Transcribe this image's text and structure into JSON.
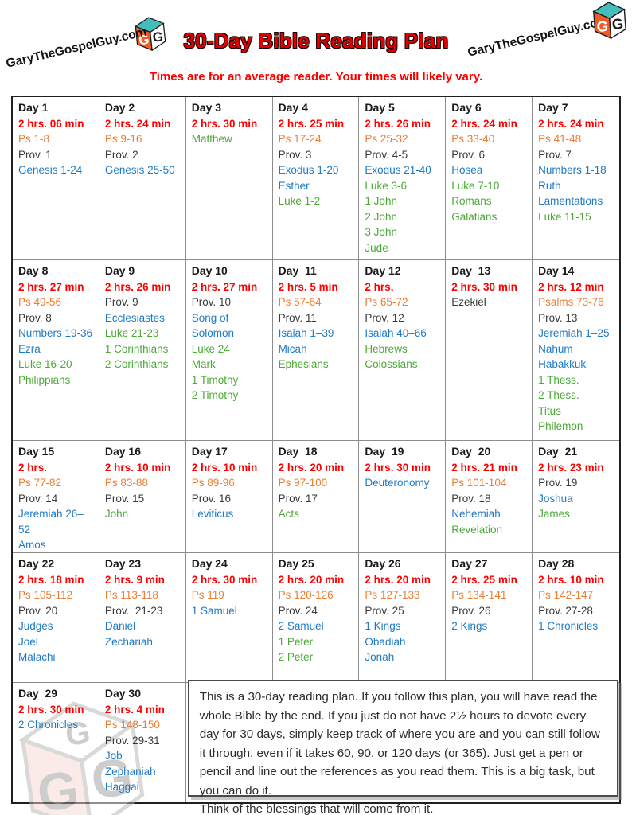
{
  "header": {
    "site_left": "GaryTheGospelGuy.com",
    "site_right": "GaryTheGospelGuy.com",
    "title": "30-Day Bible Reading Plan",
    "subtitle": "Times are for an average reader. Your times will likely vary."
  },
  "colors": {
    "title": "#E00000",
    "title_outline": "#1A0000",
    "time": "#FF0000",
    "psalms": "#ED7D31",
    "plain": "#3A3A3A",
    "day": "#1A1A1A",
    "ot": "#1E7AC6",
    "nt": "#4CA937",
    "grid": "#8C8C8C",
    "outer": "#1F1F1F"
  },
  "icons": {
    "logo": "gospel-guy-cube-logo",
    "cube_orange": "#F05A28",
    "cube_teal": "#45BDBD"
  },
  "days": [
    {
      "label": "Day 1",
      "time": "2 hrs. 06 min",
      "readings": [
        {
          "text": "Ps 1-8",
          "cat": "ps"
        },
        {
          "text": "Prov. 1",
          "cat": "prov"
        },
        {
          "text": "Genesis 1-24",
          "cat": "ot"
        }
      ]
    },
    {
      "label": "Day 2",
      "time": "2 hrs. 24 min",
      "readings": [
        {
          "text": "Ps 9-16",
          "cat": "ps"
        },
        {
          "text": "Prov. 2",
          "cat": "prov"
        },
        {
          "text": "Genesis 25-50",
          "cat": "ot"
        }
      ]
    },
    {
      "label": "Day 3",
      "time": "2 hrs. 30 min",
      "readings": [
        {
          "text": "Matthew",
          "cat": "nt"
        }
      ]
    },
    {
      "label": "Day 4",
      "time": "2 hrs. 25 min",
      "readings": [
        {
          "text": "Ps 17-24",
          "cat": "ps"
        },
        {
          "text": "Prov. 3",
          "cat": "prov"
        },
        {
          "text": "Exodus 1-20",
          "cat": "ot"
        },
        {
          "text": "Esther",
          "cat": "ot"
        },
        {
          "text": "Luke 1-2",
          "cat": "nt"
        }
      ]
    },
    {
      "label": "Day 5",
      "time": "2 hrs. 26 min",
      "readings": [
        {
          "text": "Ps 25-32",
          "cat": "ps"
        },
        {
          "text": "Prov. 4-5",
          "cat": "prov"
        },
        {
          "text": "Exodus 21-40",
          "cat": "ot"
        },
        {
          "text": "Luke 3-6",
          "cat": "nt"
        },
        {
          "text": "1 John",
          "cat": "nt"
        },
        {
          "text": "2 John",
          "cat": "nt"
        },
        {
          "text": "3 John",
          "cat": "nt"
        },
        {
          "text": "Jude",
          "cat": "nt"
        }
      ]
    },
    {
      "label": "Day 6",
      "time": "2 hrs. 24 min",
      "readings": [
        {
          "text": "Ps 33-40",
          "cat": "ps"
        },
        {
          "text": "Prov. 6",
          "cat": "prov"
        },
        {
          "text": "Hosea",
          "cat": "ot"
        },
        {
          "text": "Luke 7-10",
          "cat": "nt"
        },
        {
          "text": "Romans",
          "cat": "nt"
        },
        {
          "text": "Galatians",
          "cat": "nt"
        }
      ]
    },
    {
      "label": "Day 7",
      "time": "2 hrs. 24 min",
      "readings": [
        {
          "text": "Ps 41-48",
          "cat": "ps"
        },
        {
          "text": "Prov. 7",
          "cat": "prov"
        },
        {
          "text": "Numbers 1-18",
          "cat": "ot"
        },
        {
          "text": "Ruth",
          "cat": "ot"
        },
        {
          "text": "Lamentations",
          "cat": "ot"
        },
        {
          "text": "Luke 11-15",
          "cat": "nt"
        }
      ]
    },
    {
      "label": "Day 8",
      "time": "2 hrs. 27 min",
      "readings": [
        {
          "text": "Ps 49-56",
          "cat": "ps"
        },
        {
          "text": "Prov. 8",
          "cat": "prov"
        },
        {
          "text": "Numbers 19-36",
          "cat": "ot"
        },
        {
          "text": "Ezra",
          "cat": "ot"
        },
        {
          "text": "Luke 16-20",
          "cat": "nt"
        },
        {
          "text": "Philippians",
          "cat": "nt"
        }
      ]
    },
    {
      "label": "Day 9",
      "time": "2 hrs. 26 min",
      "readings": [
        {
          "text": "Prov. 9",
          "cat": "prov"
        },
        {
          "text": "Ecclesiastes",
          "cat": "ot"
        },
        {
          "text": "Luke 21-23",
          "cat": "nt"
        },
        {
          "text": "1 Corinthians",
          "cat": "nt"
        },
        {
          "text": "2 Corinthians",
          "cat": "nt"
        }
      ]
    },
    {
      "label": "Day 10",
      "time": "2 hrs. 27 min",
      "readings": [
        {
          "text": "Prov. 10",
          "cat": "prov"
        },
        {
          "text": "Song of Solomon",
          "cat": "ot"
        },
        {
          "text": "Luke 24",
          "cat": "nt"
        },
        {
          "text": "Mark",
          "cat": "nt"
        },
        {
          "text": "1 Timothy",
          "cat": "nt"
        },
        {
          "text": "2 Timothy",
          "cat": "nt"
        }
      ]
    },
    {
      "label": "Day  11",
      "time": "2 hrs. 5 min",
      "readings": [
        {
          "text": "Ps 57-64",
          "cat": "ps"
        },
        {
          "text": "Prov. 11",
          "cat": "prov"
        },
        {
          "text": "Isaiah 1–39",
          "cat": "ot"
        },
        {
          "text": "Micah",
          "cat": "ot"
        },
        {
          "text": "Ephesians",
          "cat": "nt"
        }
      ]
    },
    {
      "label": "Day 12",
      "time": "2 hrs.",
      "readings": [
        {
          "text": "Ps 65-72",
          "cat": "ps"
        },
        {
          "text": "Prov. 12",
          "cat": "prov"
        },
        {
          "text": "Isaiah 40–66",
          "cat": "ot"
        },
        {
          "text": "Hebrews",
          "cat": "nt"
        },
        {
          "text": "Colossians",
          "cat": "nt"
        }
      ]
    },
    {
      "label": "Day  13",
      "time": "2 hrs. 30 min",
      "readings": [
        {
          "text": "Ezekiel",
          "cat": "plain"
        }
      ]
    },
    {
      "label": "Day 14",
      "time": "2 hrs. 12 min",
      "readings": [
        {
          "text": "Psalms 73-76",
          "cat": "ps"
        },
        {
          "text": "Prov. 13",
          "cat": "prov"
        },
        {
          "text": "Jeremiah 1–25",
          "cat": "ot"
        },
        {
          "text": "Nahum",
          "cat": "ot"
        },
        {
          "text": "Habakkuk",
          "cat": "ot"
        },
        {
          "text": "1 Thess.",
          "cat": "nt"
        },
        {
          "text": "2 Thess.",
          "cat": "nt"
        },
        {
          "text": "Titus",
          "cat": "nt"
        },
        {
          "text": "Philemon",
          "cat": "nt"
        }
      ]
    },
    {
      "label": "Day 15",
      "time": "2 hrs.",
      "readings": [
        {
          "text": "Ps 77-82",
          "cat": "ps"
        },
        {
          "text": "Prov. 14",
          "cat": "prov"
        },
        {
          "text": "Jeremiah 26–52",
          "cat": "ot"
        },
        {
          "text": "Amos",
          "cat": "ot"
        }
      ]
    },
    {
      "label": "Day 16",
      "time": "2 hrs. 10 min",
      "readings": [
        {
          "text": "Ps 83-88",
          "cat": "ps"
        },
        {
          "text": "Prov. 15",
          "cat": "prov"
        },
        {
          "text": "John",
          "cat": "nt"
        }
      ]
    },
    {
      "label": "Day 17",
      "time": "2 hrs. 10 min",
      "readings": [
        {
          "text": "Ps 89-96",
          "cat": "ps"
        },
        {
          "text": "Prov. 16",
          "cat": "prov"
        },
        {
          "text": "Leviticus",
          "cat": "ot"
        }
      ]
    },
    {
      "label": "Day  18",
      "time": "2 hrs. 20 min",
      "readings": [
        {
          "text": "Ps 97-100",
          "cat": "ps"
        },
        {
          "text": "Prov. 17",
          "cat": "prov"
        },
        {
          "text": "Acts",
          "cat": "nt"
        }
      ]
    },
    {
      "label": "Day  19",
      "time": "2 hrs. 30 min",
      "readings": [
        {
          "text": "Deuteronomy",
          "cat": "ot"
        }
      ]
    },
    {
      "label": "Day  20",
      "time": "2 hrs. 21 min",
      "readings": [
        {
          "text": "Ps 101-104",
          "cat": "ps"
        },
        {
          "text": "Prov. 18",
          "cat": "prov"
        },
        {
          "text": "Nehemiah",
          "cat": "ot"
        },
        {
          "text": "Revelation",
          "cat": "nt"
        }
      ]
    },
    {
      "label": "Day  21",
      "time": "2 hrs. 23 min",
      "readings": [
        {
          "text": "Prov. 19",
          "cat": "prov"
        },
        {
          "text": "Joshua",
          "cat": "ot"
        },
        {
          "text": "James",
          "cat": "nt"
        }
      ]
    },
    {
      "label": "Day 22",
      "time": "2 hrs. 18 min",
      "readings": [
        {
          "text": "Ps 105-112",
          "cat": "ps"
        },
        {
          "text": "Prov. 20",
          "cat": "prov"
        },
        {
          "text": "Judges",
          "cat": "ot"
        },
        {
          "text": "Joel",
          "cat": "ot"
        },
        {
          "text": "Malachi",
          "cat": "ot"
        }
      ]
    },
    {
      "label": "Day 23",
      "time": "2 hrs. 9 min",
      "readings": [
        {
          "text": "Ps 113-118",
          "cat": "ps"
        },
        {
          "text": "Prov.  21-23",
          "cat": "prov"
        },
        {
          "text": "Daniel",
          "cat": "ot"
        },
        {
          "text": "Zechariah",
          "cat": "ot"
        }
      ]
    },
    {
      "label": "Day 24",
      "time": "2 hrs. 30 min",
      "readings": [
        {
          "text": "Ps 119",
          "cat": "ps"
        },
        {
          "text": "1 Samuel",
          "cat": "ot"
        }
      ]
    },
    {
      "label": "Day 25",
      "time": "2 hrs. 20 min",
      "readings": [
        {
          "text": "Ps 120-126",
          "cat": "ps"
        },
        {
          "text": "Prov. 24",
          "cat": "prov"
        },
        {
          "text": "2 Samuel",
          "cat": "ot"
        },
        {
          "text": "1 Peter",
          "cat": "nt"
        },
        {
          "text": "2 Peter",
          "cat": "nt"
        }
      ]
    },
    {
      "label": "Day 26",
      "time": "2 hrs. 20 min",
      "readings": [
        {
          "text": "Ps 127-133",
          "cat": "ps"
        },
        {
          "text": "Prov. 25",
          "cat": "prov"
        },
        {
          "text": "1 Kings",
          "cat": "ot"
        },
        {
          "text": "Obadiah",
          "cat": "ot"
        },
        {
          "text": "Jonah",
          "cat": "ot"
        }
      ]
    },
    {
      "label": "Day 27",
      "time": "2 hrs. 25 min",
      "readings": [
        {
          "text": "Ps 134-141",
          "cat": "ps"
        },
        {
          "text": "Prov. 26",
          "cat": "prov"
        },
        {
          "text": "2 Kings",
          "cat": "ot"
        }
      ]
    },
    {
      "label": "Day 28",
      "time": "2 hrs. 10 min",
      "readings": [
        {
          "text": "Ps 142-147",
          "cat": "ps"
        },
        {
          "text": "Prov. 27-28",
          "cat": "prov"
        },
        {
          "text": "1 Chronicles",
          "cat": "ot"
        }
      ]
    },
    {
      "label": "Day  29",
      "time": "2 hrs. 30 min",
      "readings": [
        {
          "text": "2 Chronicles",
          "cat": "ot"
        }
      ]
    },
    {
      "label": "Day 30",
      "time": "2 hrs. 4 min",
      "readings": [
        {
          "text": "Ps 148-150",
          "cat": "ps"
        },
        {
          "text": "Prov. 29-31",
          "cat": "prov"
        },
        {
          "text": "Job",
          "cat": "ot"
        },
        {
          "text": "Zephaniah",
          "cat": "ot"
        },
        {
          "text": "Haggai",
          "cat": "ot"
        }
      ]
    }
  ],
  "note": {
    "text": "This is a 30-day reading plan. If you follow this plan, you will have read the whole Bible by the end. If you just do not have 2½ hours to devote every day for 30 days, simply keep track of where you are and you can still follow it through, even if it takes 60, 90, or 120 days (or 365). Just get a pen or pencil and line out the references as you read them. This is a big task, but you can do it.\nThink of the blessings that will come from it."
  }
}
